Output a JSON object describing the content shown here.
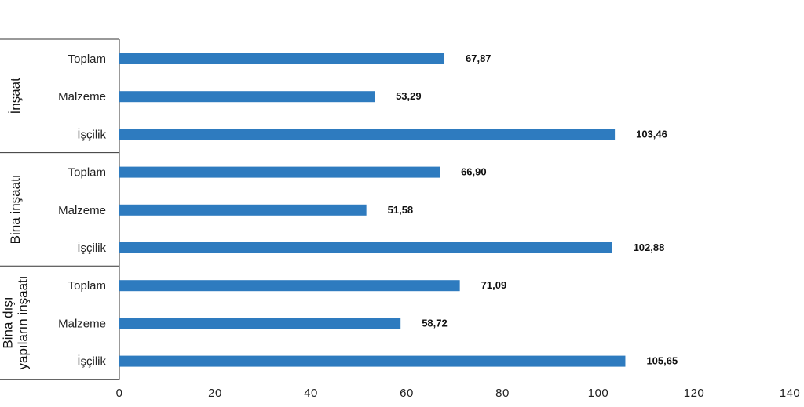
{
  "chart_data": {
    "type": "bar",
    "orientation": "horizontal",
    "title": "",
    "xlabel": "",
    "ylabel": "",
    "xlim": [
      0,
      140
    ],
    "x_ticks": [
      "0",
      "20",
      "40",
      "60",
      "80",
      "100",
      "120",
      "140"
    ],
    "x_tick_values": [
      0,
      20,
      40,
      60,
      80,
      100,
      120,
      140
    ],
    "grid": false,
    "legend": "none",
    "bar_color": "#2e7bbf",
    "groups": [
      {
        "label_lines": [
          "İnşaat"
        ],
        "bars": [
          {
            "category": "Toplam",
            "value": 67.87,
            "label": "67,87"
          },
          {
            "category": "Malzeme",
            "value": 53.29,
            "label": "53,29"
          },
          {
            "category": "İşçilik",
            "value": 103.46,
            "label": "103,46"
          }
        ]
      },
      {
        "label_lines": [
          "Bina inşaatı"
        ],
        "bars": [
          {
            "category": "Toplam",
            "value": 66.9,
            "label": "66,90"
          },
          {
            "category": "Malzeme",
            "value": 51.58,
            "label": "51,58"
          },
          {
            "category": "İşçilik",
            "value": 102.88,
            "label": "102,88"
          }
        ]
      },
      {
        "label_lines": [
          "Bina dışı",
          "yapıların inşaatı"
        ],
        "bars": [
          {
            "category": "Toplam",
            "value": 71.09,
            "label": "71,09"
          },
          {
            "category": "Malzeme",
            "value": 58.72,
            "label": "58,72"
          },
          {
            "category": "İşçilik",
            "value": 105.65,
            "label": "105,65"
          }
        ]
      }
    ]
  }
}
